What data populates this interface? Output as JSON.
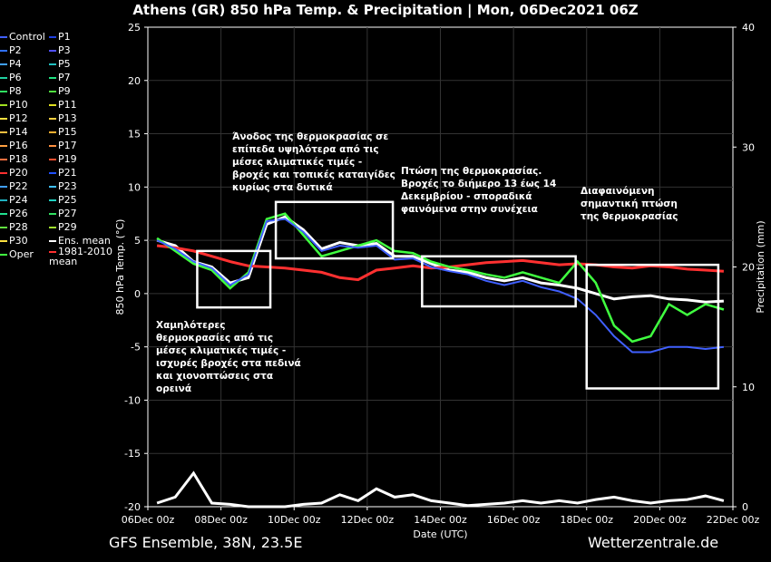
{
  "title": "Athens  (GR)  850 hPa Temp. & Precipitation | Mon, 06Dec2021 06Z",
  "footer": {
    "left": "GFS Ensemble, 38N, 23.5E",
    "right": "Wetterzentrale.de"
  },
  "legend": [
    {
      "label": "Control",
      "color": "#4060ff"
    },
    {
      "label": "P1",
      "color": "#2040e0"
    },
    {
      "label": "P2",
      "color": "#3070ff"
    },
    {
      "label": "P3",
      "color": "#5050ff"
    },
    {
      "label": "P4",
      "color": "#40a0ff"
    },
    {
      "label": "P5",
      "color": "#20c0c0"
    },
    {
      "label": "P6",
      "color": "#20d0a0"
    },
    {
      "label": "P7",
      "color": "#20e080"
    },
    {
      "label": "P8",
      "color": "#30e060"
    },
    {
      "label": "P9",
      "color": "#50e040"
    },
    {
      "label": "P10",
      "color": "#a0e020"
    },
    {
      "label": "P11",
      "color": "#e0e020"
    },
    {
      "label": "P12",
      "color": "#ffe040"
    },
    {
      "label": "P13",
      "color": "#ffd040"
    },
    {
      "label": "P14",
      "color": "#ffc040"
    },
    {
      "label": "P15",
      "color": "#ffb030"
    },
    {
      "label": "P16",
      "color": "#ffa040"
    },
    {
      "label": "P17",
      "color": "#ff9040"
    },
    {
      "label": "P18",
      "color": "#ff7040"
    },
    {
      "label": "P19",
      "color": "#ff5030"
    },
    {
      "label": "P20",
      "color": "#ff3030"
    },
    {
      "label": "P21",
      "color": "#2050ff"
    },
    {
      "label": "P22",
      "color": "#40a0ff"
    },
    {
      "label": "P23",
      "color": "#40c0ff"
    },
    {
      "label": "P24",
      "color": "#20b0c0"
    },
    {
      "label": "P25",
      "color": "#20d0c0"
    },
    {
      "label": "P26",
      "color": "#20e090"
    },
    {
      "label": "P27",
      "color": "#30e060"
    },
    {
      "label": "P28",
      "color": "#60e040"
    },
    {
      "label": "P29",
      "color": "#a0e030"
    },
    {
      "label": "P30",
      "color": "#ffe040"
    },
    {
      "label": "Ens. mean",
      "color": "#ffffff"
    },
    {
      "label": "Oper",
      "color": "#40ff40"
    },
    {
      "label": "1981-2010 mean",
      "color": "#ff3030"
    }
  ],
  "annotations": {
    "a1": "Χαμηλότερες θερμοκρασίες από τις μέσες κλιματικές τιμές - ισχυρές βροχές στα πεδινά και χιονοπτώσεις στα ορεινά",
    "a2": "Άνοδος της θερμοκρασίας σε επίπεδα υψηλότερα από τις μέσες κλιματικές τιμές - βροχές και τοπικές καταιγίδες κυρίως στα δυτικά",
    "a3": "Πτώση της θερμοκρασίας. Βροχές το διήμερο 13 έως 14 Δεκεμβρίου - σποραδικά φαινόμενα στην συνέχεια",
    "a4": "Διαφαινόμενη σημαντική πτώση της θερμοκρασίας"
  },
  "chart_data": {
    "type": "line",
    "xlabel": "Date (UTC)",
    "ylabel": "850 hPa Temp. (°C)",
    "ylabel_right": "Precipitation (mm)",
    "x_ticks": [
      "06Dec 00z",
      "08Dec 00z",
      "10Dec 00z",
      "12Dec 00z",
      "14Dec 00z",
      "16Dec 00z",
      "18Dec 00z",
      "20Dec 00z",
      "22Dec 00z"
    ],
    "ylim": [
      -20,
      25
    ],
    "y_ticks": [
      25,
      20,
      15,
      10,
      5,
      0,
      -5,
      -10,
      -15,
      -20
    ],
    "ylim_right": [
      0,
      40
    ],
    "y_ticks_right": [
      40,
      30,
      20,
      10,
      0
    ],
    "xlim_days": [
      0,
      16
    ],
    "series": [
      {
        "name": "Ens. mean",
        "color": "#ffffff",
        "x": [
          0.25,
          0.75,
          1.25,
          1.75,
          2.25,
          2.75,
          3.25,
          3.75,
          4.25,
          4.75,
          5.25,
          5.75,
          6.25,
          6.75,
          7.25,
          7.75,
          8.25,
          8.75,
          9.25,
          9.75,
          10.25,
          10.75,
          11.25,
          11.75,
          12.25,
          12.75,
          13.25,
          13.75,
          14.25,
          14.75,
          15.25,
          15.75
        ],
        "y": [
          5,
          4.5,
          3,
          2.5,
          1,
          1.5,
          6.5,
          7.2,
          6,
          4.2,
          4.8,
          4.5,
          4.7,
          3.5,
          3.5,
          2.8,
          2.2,
          2,
          1.5,
          1.2,
          1.5,
          1,
          0.8,
          0.5,
          0,
          -0.5,
          -0.3,
          -0.2,
          -0.5,
          -0.6,
          -0.8,
          -0.7
        ]
      },
      {
        "name": "1981-2010 mean",
        "color": "#ff3030",
        "x": [
          0.25,
          0.75,
          1.25,
          1.75,
          2.25,
          2.75,
          3.25,
          3.75,
          4.25,
          4.75,
          5.25,
          5.75,
          6.25,
          6.75,
          7.25,
          7.75,
          8.25,
          8.75,
          9.25,
          9.75,
          10.25,
          10.75,
          11.25,
          11.75,
          12.25,
          12.75,
          13.25,
          13.75,
          14.25,
          14.75,
          15.25,
          15.75
        ],
        "y": [
          4.5,
          4.3,
          4,
          3.5,
          3,
          2.6,
          2.5,
          2.4,
          2.2,
          2,
          1.5,
          1.3,
          2.2,
          2.4,
          2.6,
          2.4,
          2.5,
          2.7,
          2.9,
          3,
          3.1,
          2.9,
          2.7,
          2.8,
          2.7,
          2.5,
          2.4,
          2.6,
          2.5,
          2.3,
          2.2,
          2.1
        ]
      },
      {
        "name": "Oper",
        "color": "#40ff40",
        "x": [
          0.25,
          0.75,
          1.25,
          1.75,
          2.25,
          2.75,
          3.25,
          3.75,
          4.25,
          4.75,
          5.25,
          5.75,
          6.25,
          6.75,
          7.25,
          7.75,
          8.25,
          8.75,
          9.25,
          9.75,
          10.25,
          10.75,
          11.25,
          11.75,
          12.25,
          12.75,
          13.25,
          13.75,
          14.25,
          14.75,
          15.25,
          15.75
        ],
        "y": [
          5.2,
          4,
          2.8,
          2.2,
          0.5,
          2,
          7,
          7.5,
          5.5,
          3.5,
          4,
          4.5,
          5,
          4,
          3.8,
          3,
          2.5,
          2.2,
          1.8,
          1.5,
          2,
          1.5,
          1,
          3,
          1,
          -3,
          -4.5,
          -4,
          -1,
          -2,
          -1,
          -1.5
        ]
      },
      {
        "name": "Control",
        "color": "#4060ff",
        "x": [
          0.25,
          0.75,
          1.25,
          1.75,
          2.25,
          2.75,
          3.25,
          3.75,
          4.25,
          4.75,
          5.25,
          5.75,
          6.25,
          6.75,
          7.25,
          7.75,
          8.25,
          8.75,
          9.25,
          9.75,
          10.25,
          10.75,
          11.25,
          11.75,
          12.25,
          12.75,
          13.25,
          13.75,
          14.25,
          14.75,
          15.25,
          15.75
        ],
        "y": [
          5,
          4.2,
          3,
          2.4,
          0.8,
          1.8,
          6.8,
          7,
          5.8,
          4,
          4.5,
          4.3,
          4.5,
          3.2,
          3.3,
          2.5,
          2.1,
          1.8,
          1.2,
          0.8,
          1.2,
          0.6,
          0.2,
          -0.5,
          -2,
          -4,
          -5.5,
          -5.5,
          -5,
          -5,
          -5.2,
          -5
        ]
      }
    ],
    "ens_mean_precip": {
      "x": [
        0.25,
        0.75,
        1.25,
        1.75,
        2.25,
        2.75,
        3.25,
        3.75,
        4.25,
        4.75,
        5.25,
        5.75,
        6.25,
        6.75,
        7.25,
        7.75,
        8.25,
        8.75,
        9.25,
        9.75,
        10.25,
        10.75,
        11.25,
        11.75,
        12.25,
        12.75,
        13.25,
        13.75,
        14.25,
        14.75,
        15.25,
        15.75
      ],
      "y": [
        0.3,
        0.8,
        2.8,
        0.3,
        0.2,
        0,
        0,
        0,
        0.2,
        0.3,
        1,
        0.5,
        1.5,
        0.8,
        1,
        0.5,
        0.3,
        0.1,
        0.2,
        0.3,
        0.5,
        0.3,
        0.5,
        0.3,
        0.6,
        0.8,
        0.5,
        0.3,
        0.5,
        0.6,
        0.9,
        0.5
      ]
    },
    "boxes": [
      {
        "x": [
          1.35,
          3.35
        ],
        "y": [
          -1.3,
          4
        ]
      },
      {
        "x": [
          3.5,
          6.7
        ],
        "y": [
          3.3,
          8.6
        ]
      },
      {
        "x": [
          7.5,
          11.7
        ],
        "y": [
          -1.2,
          3.5
        ]
      },
      {
        "x": [
          12,
          15.6
        ],
        "y": [
          -8.9,
          2.7
        ]
      }
    ]
  }
}
